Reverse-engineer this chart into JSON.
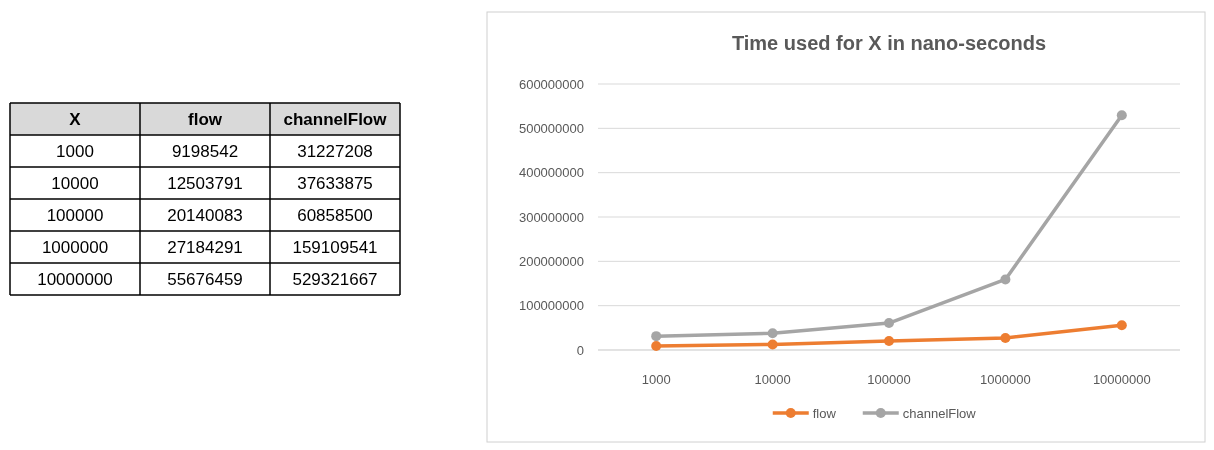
{
  "chart_data": [
    {
      "type": "other",
      "annotations": [
        "X"
      ],
      "data_labels": true,
      "categories": [
        "1000",
        "10000",
        "100000",
        "1000000",
        "10000000"
      ],
      "series": [
        {
          "name": "flow",
          "values": [
            9198542,
            12503791,
            20140083,
            27184291,
            55676459
          ]
        },
        {
          "name": "channelFlow",
          "values": [
            31227208,
            37633875,
            60858500,
            159109541,
            529321667
          ]
        }
      ]
    },
    {
      "type": "line",
      "title": "Time used for X in nano-seconds",
      "categories": [
        "1000",
        "10000",
        "100000",
        "1000000",
        "10000000"
      ],
      "series": [
        {
          "name": "flow",
          "color": "#ed7d31",
          "values": [
            9198542,
            12503791,
            20140083,
            27184291,
            55676459
          ]
        },
        {
          "name": "channelFlow",
          "color": "#a5a5a5",
          "values": [
            31227208,
            37633875,
            60858500,
            159109541,
            529321667
          ]
        }
      ],
      "ylim": [
        0,
        600000000
      ],
      "yticks": [
        0,
        100000000,
        200000000,
        300000000,
        400000000,
        500000000,
        600000000
      ],
      "grid": "y",
      "legend": "bottom",
      "marker": "circle",
      "line_style": "solid"
    }
  ]
}
